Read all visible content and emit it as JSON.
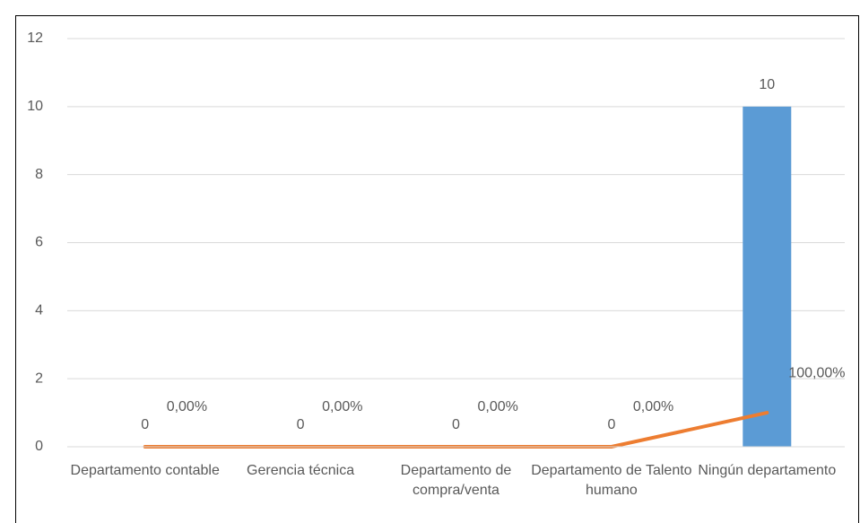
{
  "chart_data": {
    "type": "bar",
    "categories": [
      "Departamento contable",
      "Gerencia técnica",
      "Departamento de compra/venta",
      "Departamento de Talento humano",
      "Ningún departamento"
    ],
    "series": [
      {
        "type": "bar",
        "color": "#5b9bd5",
        "values": [
          0,
          0,
          0,
          0,
          10
        ]
      },
      {
        "type": "line",
        "color": "#ed7d31",
        "values": [
          0,
          0,
          0,
          0,
          1
        ],
        "value_labels": [
          "0,00%",
          "0,00%",
          "0,00%",
          "0,00%",
          "100,00%"
        ]
      }
    ],
    "ylim": [
      0,
      12
    ],
    "yticks": [
      0,
      2,
      4,
      6,
      8,
      10,
      12
    ],
    "grid": true
  }
}
